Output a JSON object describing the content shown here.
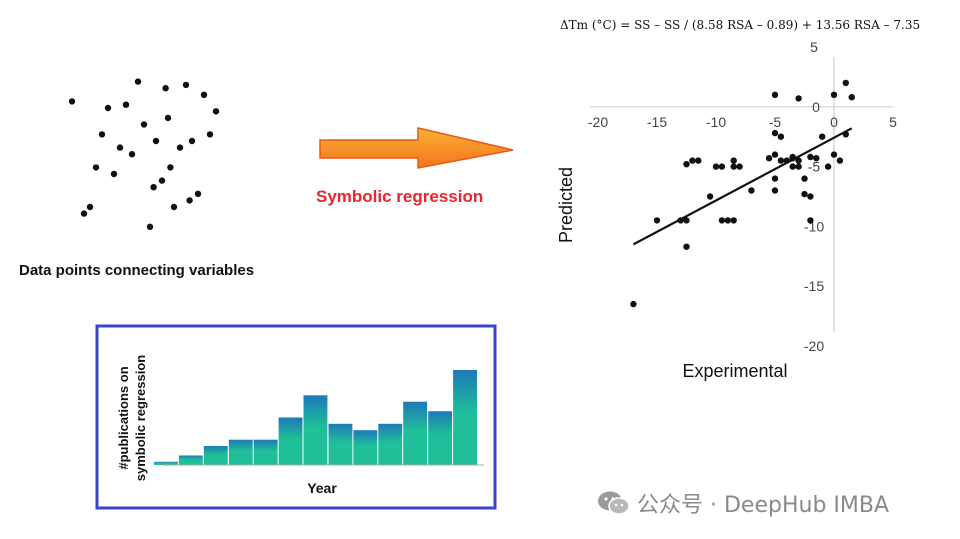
{
  "left_panel": {
    "caption": "Data points connecting variables"
  },
  "arrow": {
    "label": "Symbolic regression",
    "label_color": "#e8262c",
    "fill_color": "#f4731f",
    "fill_color_light": "#f9b233"
  },
  "inset_chart": {
    "border_color": "#3b44c8",
    "xlabel": "Year",
    "ylabel_line1": "#publications on",
    "ylabel_line2": "symbolic regression"
  },
  "formula": "ΔTm (°C) = SS – SS / (8.58 RSA – 0.89) + 13.56 RSA – 7.35",
  "watermark": "公众号 · DeepHub IMBA",
  "chart_data": [
    {
      "type": "scatter",
      "title": "",
      "x": [
        -7.0,
        -4.5,
        -6.0,
        -10.0,
        -3.2,
        -5.0,
        -2.0,
        -11.0,
        -12.0,
        -9.5,
        -4.0,
        -6.5,
        -8.0,
        -1.5,
        -3.5,
        -5.5,
        -7.5,
        -10.5,
        -2.5,
        -13.0,
        -4.8,
        -11.5,
        -8.5,
        -3.0,
        -6.2,
        -9.0,
        -1.0,
        -5.2
      ],
      "y": [
        -1.5,
        -4.0,
        -2.0,
        -1.0,
        -3.8,
        -1.3,
        -0.6,
        -2.8,
        -4.2,
        -3.0,
        -2.2,
        -4.6,
        -2.4,
        -1.8,
        -0.3,
        -3.2,
        -0.2,
        -1.8,
        -3.6,
        -0.8,
        -2.8,
        -4.0,
        -0.9,
        -2.0,
        -3.4,
        -2.2,
        -1.1,
        -0.4
      ]
    },
    {
      "type": "scatter",
      "xlabel": "Experimental",
      "ylabel": "Predicted",
      "xlim": [
        -20,
        5
      ],
      "ylim": [
        -20,
        5
      ],
      "xticks": [
        -20,
        -15,
        -10,
        -5,
        0,
        5
      ],
      "yticks": [
        5,
        0,
        -5,
        -10,
        -15,
        -20
      ],
      "x": [
        -17,
        -15,
        -13,
        -12.5,
        -12.5,
        -12.5,
        -12,
        -11.5,
        -10.5,
        -10.0,
        -9.5,
        -9.5,
        -9,
        -8.5,
        -8.5,
        -8.5,
        -8,
        -7,
        -5.5,
        -5,
        -5,
        -5,
        -5,
        -5,
        -4.5,
        -4.5,
        -4,
        -3.5,
        -3.5,
        -3.5,
        -3,
        -3,
        -3,
        -2.5,
        -2.5,
        -2,
        -2,
        -2,
        -1.5,
        -1,
        -0.5,
        0,
        0,
        0.5,
        1,
        1,
        1.5
      ],
      "y": [
        -16.5,
        -9.5,
        -9.5,
        -4.8,
        -9.5,
        -11.7,
        -4.5,
        -4.5,
        -7.5,
        -5,
        -5,
        -9.5,
        -9.5,
        -4.5,
        -5,
        -9.5,
        -5,
        -7.0,
        -4.3,
        1.0,
        -4.0,
        -2.2,
        -6.0,
        -7.0,
        -2.5,
        -4.5,
        -4.5,
        -5,
        -4.3,
        -4.2,
        0.7,
        -5,
        -4.5,
        -7.3,
        -6,
        -4.2,
        -9.5,
        -7.5,
        -4.3,
        -2.5,
        -5,
        1,
        -4,
        -4.5,
        2,
        -2.3,
        0.8
      ],
      "fit_line": {
        "x": [
          -17,
          1.5
        ],
        "y": [
          -11.5,
          -1.8
        ]
      }
    },
    {
      "type": "bar",
      "xlabel": "Year",
      "ylabel": "#publications on symbolic regression",
      "values": [
        1,
        3,
        6,
        8,
        8,
        15,
        22,
        13,
        11,
        13,
        20,
        17,
        30
      ],
      "color_low": "#1fbf99",
      "color_high": "#1e78b8"
    }
  ]
}
